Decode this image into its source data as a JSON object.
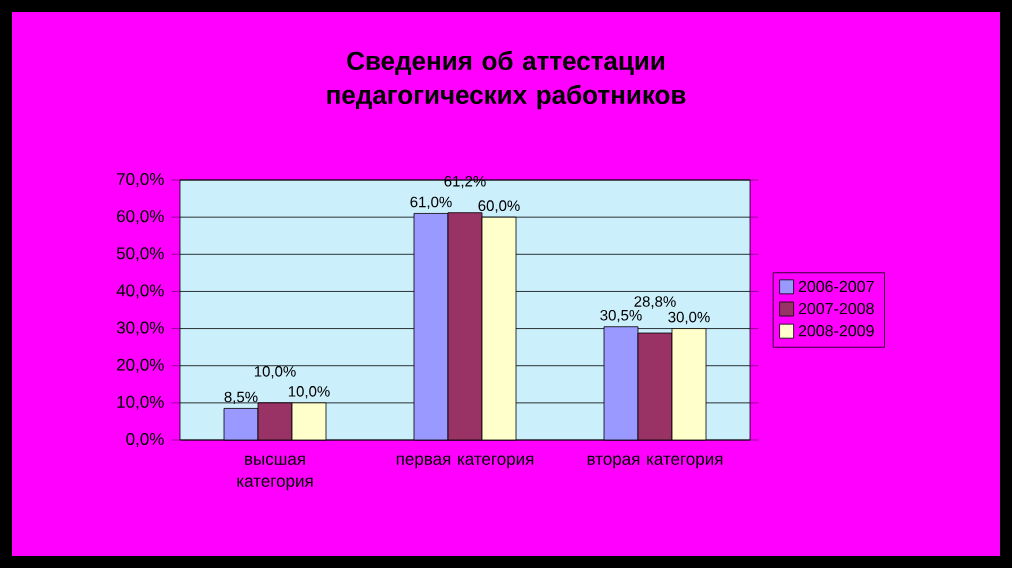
{
  "chart_data": {
    "type": "bar",
    "title": "Сведения об аттестации педагогических работников",
    "categories": [
      "высшая категория",
      "первая категория",
      "вторая категория"
    ],
    "series": [
      {
        "name": "2006-2007",
        "color": "#9999ff",
        "values": [
          8.5,
          61.0,
          30.5
        ],
        "value_labels": [
          "8,5%",
          "61,0%",
          "30,5%"
        ]
      },
      {
        "name": "2007-2008",
        "color": "#993366",
        "values": [
          10.0,
          61.2,
          28.8
        ],
        "value_labels": [
          "10,0%",
          "61,2%",
          "28,8%"
        ]
      },
      {
        "name": "2008-2009",
        "color": "#ffffcc",
        "values": [
          10.0,
          60.0,
          30.0
        ],
        "value_labels": [
          "10,0%",
          "60,0%",
          "30,0%"
        ]
      }
    ],
    "ylim": [
      0,
      70
    ],
    "yticks": [
      {
        "value": 0,
        "label": "0,0%"
      },
      {
        "value": 10,
        "label": "10,0%"
      },
      {
        "value": 20,
        "label": "20,0%"
      },
      {
        "value": 30,
        "label": "30,0%"
      },
      {
        "value": 40,
        "label": "40,0%"
      },
      {
        "value": 50,
        "label": "50,0%"
      },
      {
        "value": 60,
        "label": "60,0%"
      },
      {
        "value": 70,
        "label": "70,0%"
      }
    ],
    "grid": "y",
    "legend": "right"
  }
}
